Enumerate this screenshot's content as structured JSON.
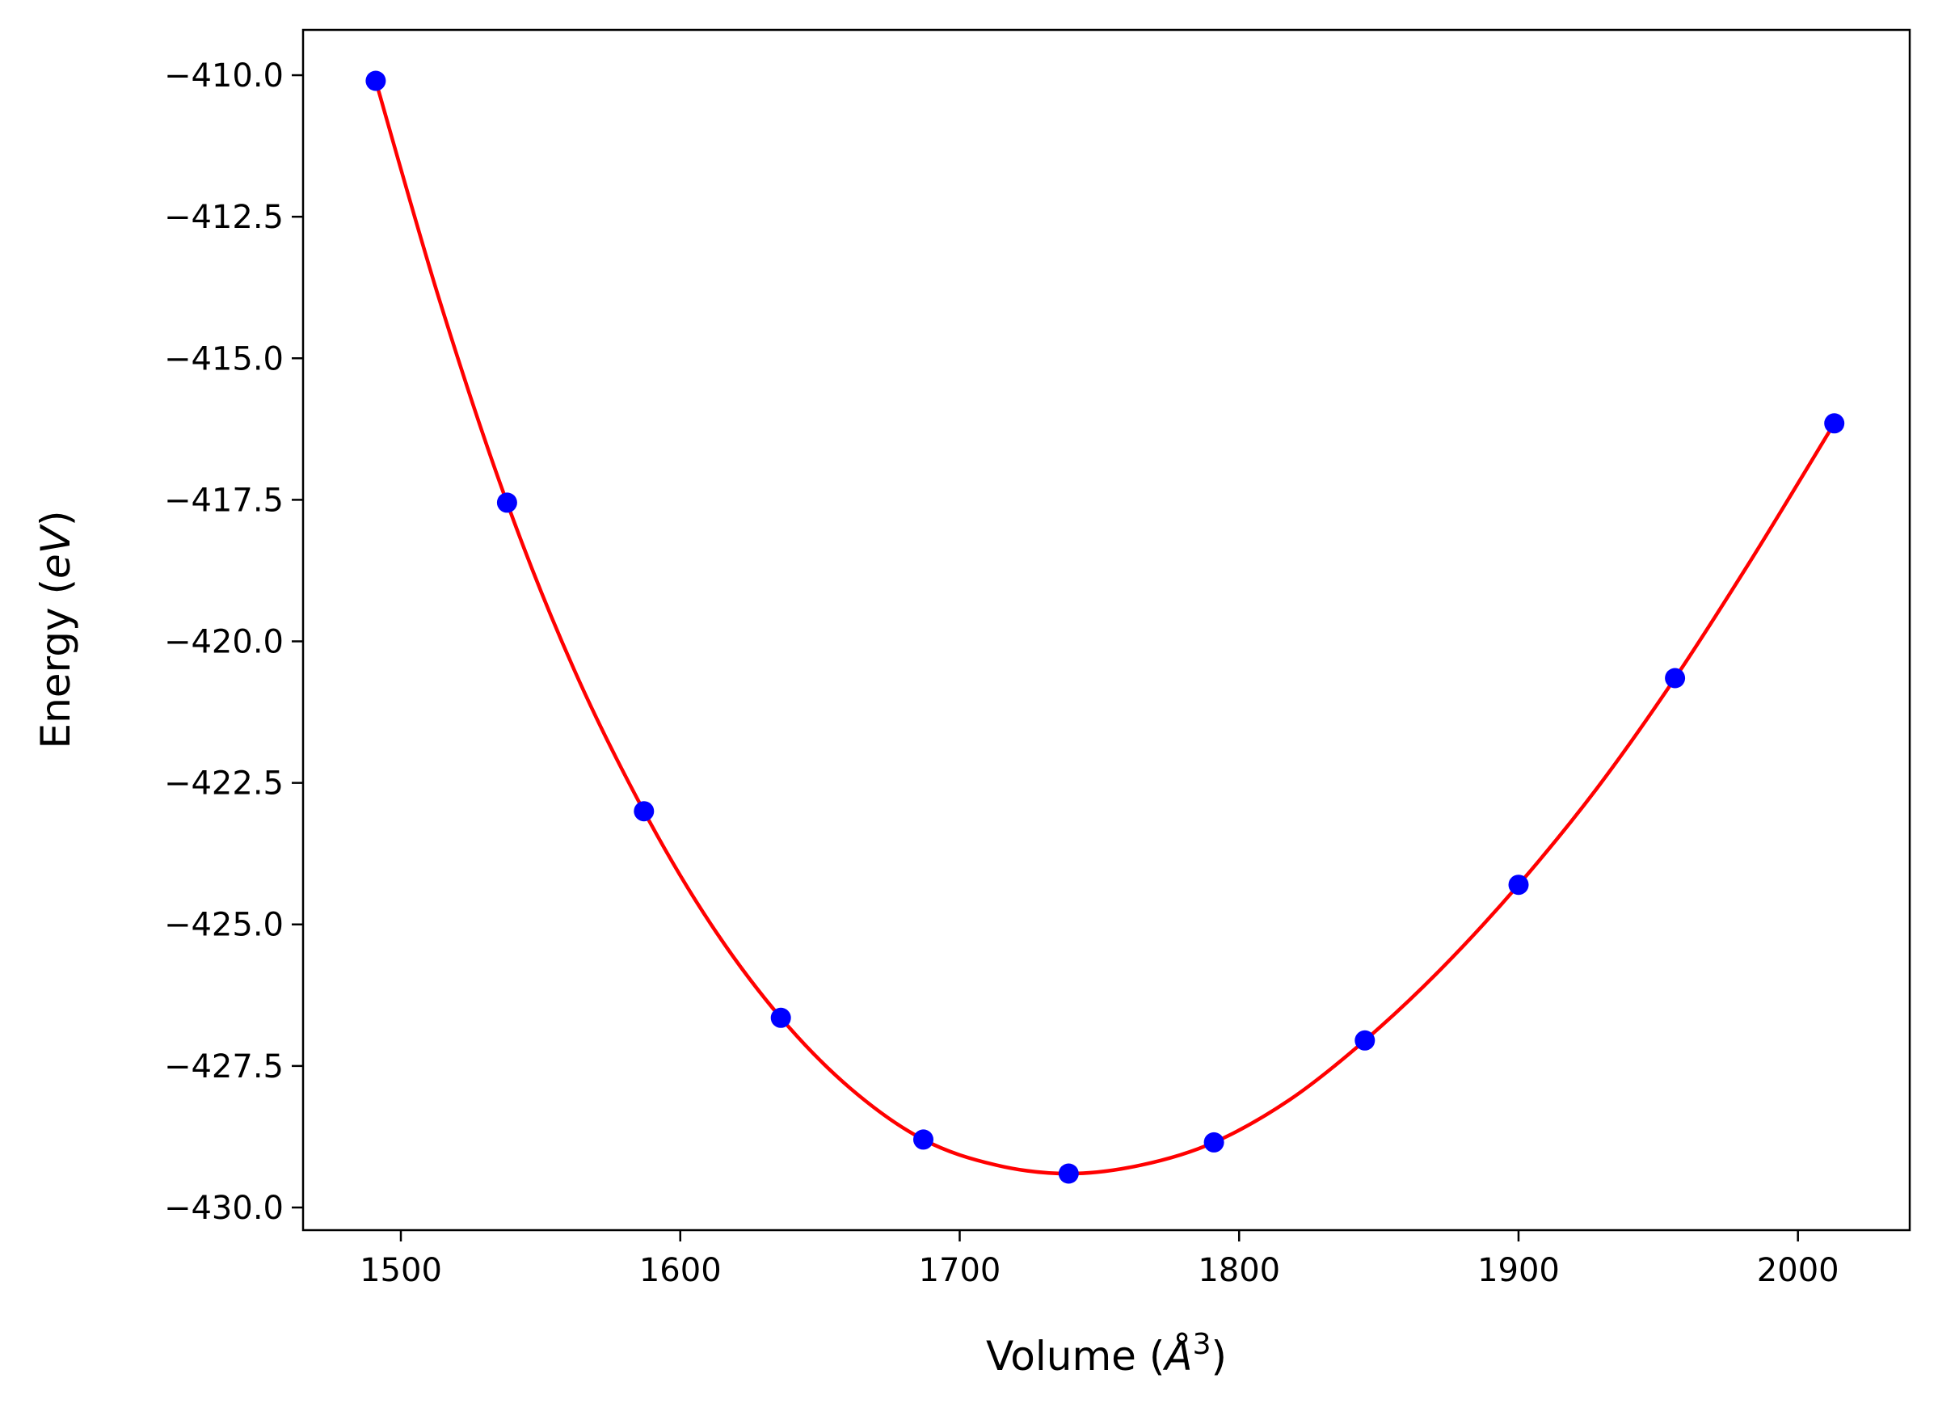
{
  "chart_data": {
    "type": "scatter",
    "title": "",
    "xlabel": {
      "prefix": "Volume (",
      "symbol": "Å",
      "exponent": "3",
      "suffix": ")"
    },
    "ylabel": {
      "prefix": "Energy (",
      "symbol": "eV",
      "suffix": ")"
    },
    "xlim": [
      1465,
      2040
    ],
    "ylim": [
      -430.4,
      -409.2
    ],
    "xticks": [
      1500,
      1600,
      1700,
      1800,
      1900,
      2000
    ],
    "xtick_labels": [
      "1500",
      "1600",
      "1700",
      "1800",
      "1900",
      "2000"
    ],
    "yticks": [
      -410.0,
      -412.5,
      -415.0,
      -417.5,
      -420.0,
      -422.5,
      -425.0,
      -427.5,
      -430.0
    ],
    "ytick_labels": [
      "−410.0",
      "−412.5",
      "−415.0",
      "−417.5",
      "−420.0",
      "−422.5",
      "−425.0",
      "−427.5",
      "−430.0"
    ],
    "grid": false,
    "legend": "none",
    "series": [
      {
        "kind": "points",
        "color": "#0000ff",
        "x": [
          1491,
          1538,
          1587,
          1636,
          1687,
          1739,
          1791,
          1845,
          1900,
          1956,
          2013
        ],
        "y": [
          -410.1,
          -417.55,
          -423.0,
          -426.65,
          -428.8,
          -429.4,
          -428.85,
          -427.05,
          -424.3,
          -420.65,
          -416.15
        ]
      },
      {
        "kind": "fit-line",
        "color": "#ff0000",
        "x": [
          1491,
          1514,
          1538,
          1562,
          1587,
          1611,
          1636,
          1661,
          1687,
          1713,
          1739,
          1765,
          1791,
          1818,
          1845,
          1872,
          1900,
          1928,
          1956,
          1984,
          2013
        ],
        "y": [
          -410.1,
          -414.0,
          -417.55,
          -420.5,
          -423.0,
          -425.0,
          -426.65,
          -427.9,
          -428.8,
          -429.25,
          -429.4,
          -429.25,
          -428.85,
          -428.1,
          -427.05,
          -425.8,
          -424.3,
          -422.6,
          -420.65,
          -418.5,
          -416.15
        ]
      }
    ]
  }
}
